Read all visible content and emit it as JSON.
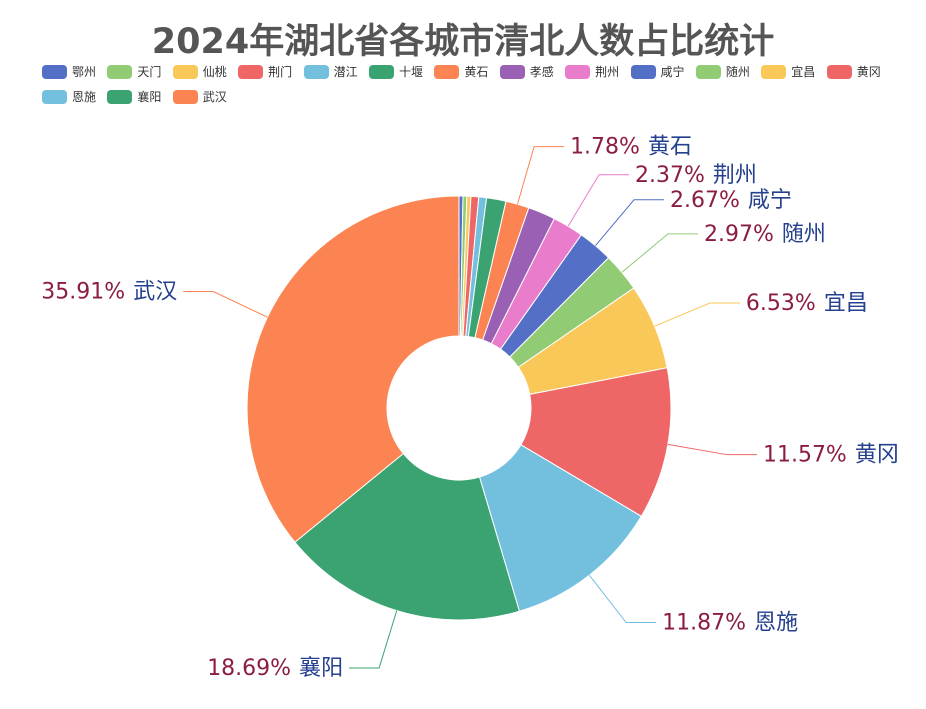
{
  "chart_data": {
    "type": "pie",
    "donut": true,
    "title": "2024年湖北省各城市清北人数占比统计",
    "legend_position": "top-left",
    "label_value_color": "#8b1d40",
    "label_name_color": "#24408e",
    "slices": [
      {
        "name": "鄂州",
        "value": 0.3,
        "color": "#5470c6"
      },
      {
        "name": "天门",
        "value": 0.3,
        "color": "#91cc75"
      },
      {
        "name": "仙桃",
        "value": 0.3,
        "color": "#fac858"
      },
      {
        "name": "荆门",
        "value": 0.59,
        "color": "#ee6666"
      },
      {
        "name": "潜江",
        "value": 0.59,
        "color": "#73c0de"
      },
      {
        "name": "十堰",
        "value": 1.48,
        "color": "#3ba272"
      },
      {
        "name": "黄石",
        "value": 1.78,
        "color": "#fc8452",
        "label": "1.78%"
      },
      {
        "name": "孝感",
        "value": 2.08,
        "color": "#9a60b4"
      },
      {
        "name": "荆州",
        "value": 2.37,
        "color": "#ea7ccc",
        "label": "2.37%"
      },
      {
        "name": "咸宁",
        "value": 2.67,
        "color": "#5470c6",
        "label": "2.67%"
      },
      {
        "name": "随州",
        "value": 2.97,
        "color": "#91cc75",
        "label": "2.97%"
      },
      {
        "name": "宜昌",
        "value": 6.53,
        "color": "#fac858",
        "label": "6.53%"
      },
      {
        "name": "黄冈",
        "value": 11.57,
        "color": "#ee6666",
        "label": "11.57%"
      },
      {
        "name": "恩施",
        "value": 11.87,
        "color": "#73c0de",
        "label": "11.87%"
      },
      {
        "name": "襄阳",
        "value": 18.69,
        "color": "#3ba272",
        "label": "18.69%"
      },
      {
        "name": "武汉",
        "value": 35.91,
        "color": "#fc8452",
        "label": "35.91%"
      }
    ]
  }
}
